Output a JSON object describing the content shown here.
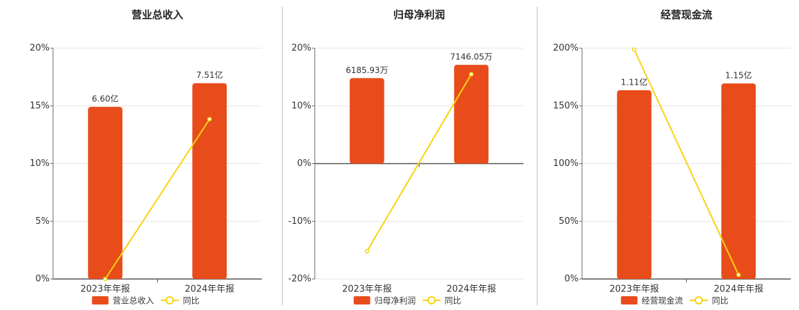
{
  "chart_data": [
    {
      "type": "combo",
      "title": "营业总收入",
      "categories": [
        "2023年年报",
        "2024年年报"
      ],
      "ylim": [
        0,
        20
      ],
      "yticks": [
        {
          "value": 0,
          "label": "0%"
        },
        {
          "value": 5,
          "label": "5%"
        },
        {
          "value": 10,
          "label": "10%"
        },
        {
          "value": 15,
          "label": "15%"
        },
        {
          "value": 20,
          "label": "20%"
        }
      ],
      "y2lim": [
        0,
        8.85
      ],
      "grid": true,
      "series": [
        {
          "name": "营业总收入",
          "color": "#e84c1a",
          "type": "bar",
          "axis": "y2",
          "values": [
            6.6,
            7.51
          ],
          "value_labels": [
            "6.60亿",
            "7.51亿"
          ]
        },
        {
          "name": "同比",
          "color": "#f5d40f",
          "type": "line",
          "values": [
            0,
            13.85
          ]
        }
      ]
    },
    {
      "type": "combo",
      "title": "归母净利润",
      "categories": [
        "2023年年报",
        "2024年年报"
      ],
      "ylim": [
        -20,
        20
      ],
      "yticks": [
        {
          "value": -20,
          "label": "-20%"
        },
        {
          "value": -10,
          "label": "-10%"
        },
        {
          "value": 0,
          "label": "0%"
        },
        {
          "value": 10,
          "label": "10%"
        },
        {
          "value": 20,
          "label": "20%"
        }
      ],
      "y2lim": [
        -8345,
        8345
      ],
      "grid": true,
      "series": [
        {
          "name": "归母净利润",
          "color": "#e84c1a",
          "type": "bar",
          "axis": "y2",
          "values": [
            6185.93,
            7146.05
          ],
          "value_labels": [
            "6185.93万",
            "7146.05万"
          ]
        },
        {
          "name": "同比",
          "color": "#f5d40f",
          "type": "line",
          "values": [
            -15.2,
            15.5
          ]
        }
      ]
    },
    {
      "type": "combo",
      "title": "经营现金流",
      "categories": [
        "2023年年报",
        "2024年年报"
      ],
      "ylim": [
        0,
        200
      ],
      "yticks": [
        {
          "value": 0,
          "label": "0%"
        },
        {
          "value": 50,
          "label": "50%"
        },
        {
          "value": 100,
          "label": "100%"
        },
        {
          "value": 150,
          "label": "150%"
        },
        {
          "value": 200,
          "label": "200%"
        }
      ],
      "y2lim": [
        0,
        1.357
      ],
      "grid": true,
      "series": [
        {
          "name": "经营现金流",
          "color": "#e84c1a",
          "type": "bar",
          "axis": "y2",
          "values": [
            1.11,
            1.15
          ],
          "value_labels": [
            "1.11亿",
            "1.15亿"
          ]
        },
        {
          "name": "同比",
          "color": "#f5d40f",
          "type": "line",
          "values": [
            198.8,
            3.6
          ]
        }
      ]
    }
  ]
}
